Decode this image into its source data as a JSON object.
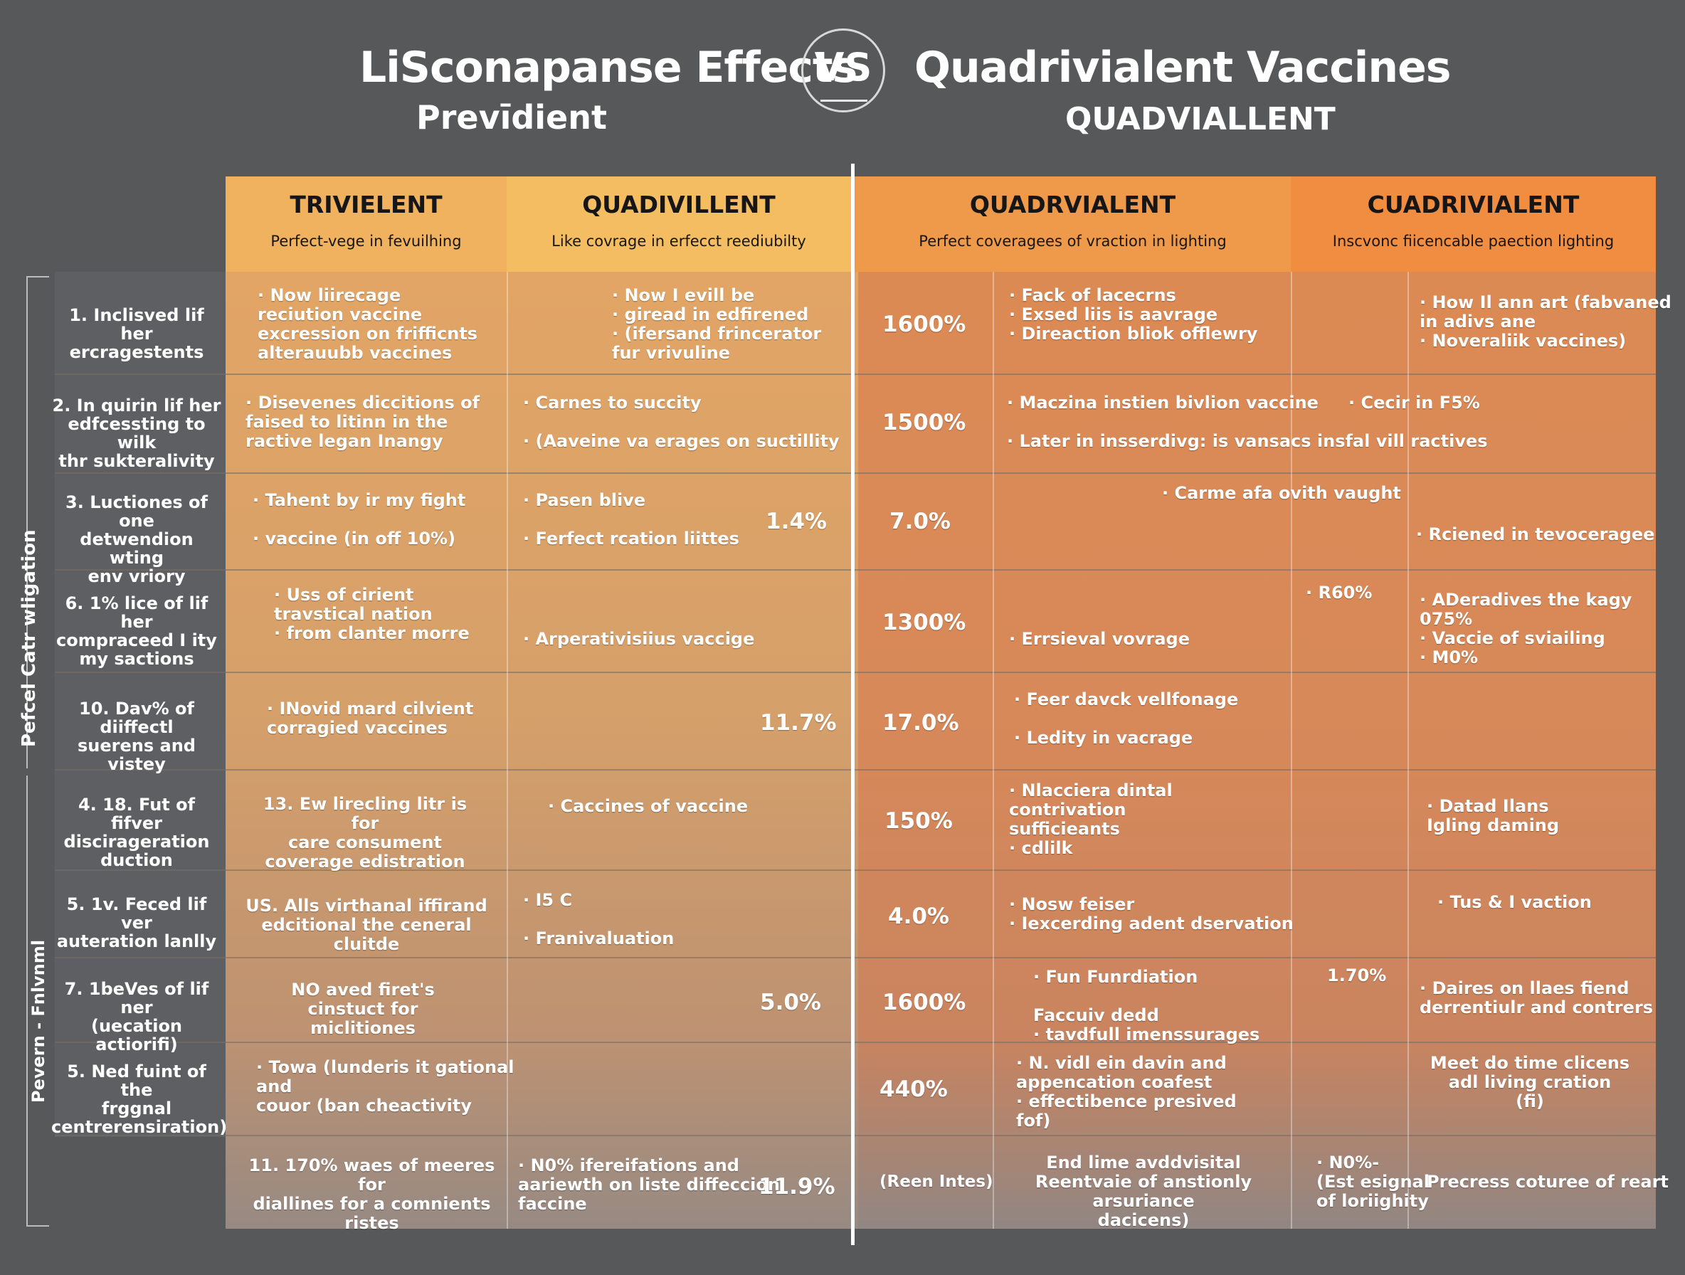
{
  "titles": {
    "left": "LiSconapanse Effects",
    "vs": "VS",
    "right": "Quadrivialent Vaccines",
    "sub_left": "Prevīdient",
    "sub_right": "QUADVIALLENT"
  },
  "headers": [
    {
      "title": "TRIVIELENT",
      "sub": "Perfect-vege in fevuilhing"
    },
    {
      "title": "QUADIVILLENT",
      "sub": "Like covrage in erfecct reediubilty"
    },
    {
      "title": "QUADRVIALENT",
      "sub": "Perfect coveragees of vraction in lighting"
    },
    {
      "title": "CUADRIVIALENT",
      "sub": "Inscvonc fiicencable paection lighting"
    }
  ],
  "side_labels": {
    "upper": "Pefcel Catr wligation",
    "lower": "Pevern - Fnlvnml"
  },
  "rows": [
    {
      "label": "1. Inclisved lif her\nercragestents",
      "c1": "· Now liirecage\n  reciution vaccine\n  excression on frifficnts\n  alterauubb vaccines",
      "c2": "· Now I evill be\n· giread in edfirened\n· (ifersand frincerator\n  fur vrivuline",
      "c2p": "",
      "c3p": "1600%",
      "c4": "· Fack of lacecrns\n· Exsed liis is aavrage\n· Direaction bliok offlewry",
      "c5p": "",
      "c6": "· How Il ann art (fabvaned\n  in adivs ane\n· Noveraliik vaccines)"
    },
    {
      "label": "2. In quirin lif her\nedfcessting to wilk\nthr sukteralivity",
      "c1": "· Disevenes diccitions of\n  faised to litinn in the\n  ractive legan Inangy",
      "c2": "· Carnes to succity\n\n· (Aaveine va erages on suctillity",
      "c2p": "",
      "c3p": "1500%",
      "c4": "· Maczina instien bivlion vaccine\n\n· Later in insserdivg: is vansacs insfal vill ractives",
      "c5p": "",
      "c6": "· Cecir in F5%"
    },
    {
      "label": "3. Luctiones of one\ndetwendion wting\nenv vriory",
      "c1": "· Tahent by ir my fight\n\n· vaccine (in off 10%)",
      "c2": "· Pasen blive\n\n· Ferfect rcation liittes",
      "c2p": "1.4%",
      "c3p": "7.0%",
      "c4": "· Carme afa ovith vaught",
      "c5p": "",
      "c6": "· Rciened in tevoceragee"
    },
    {
      "label": "6. 1% lice of lif her\ncompraceed I ity\nmy sactions",
      "c1": "· Uss of cirient\n  travstical nation\n· from clanter morre",
      "c2": "· Arperativisiius vaccige",
      "c2p": "",
      "c3p": "1300%",
      "c4": "· Errsieval vovrage",
      "c5p": "· R60%",
      "c6": "· ADeradives the kagy\n  075%\n· Vaccie of sviailing\n· M0%"
    },
    {
      "label": "10. Dav% of diiffectl\nsuerens and vistey",
      "c1": "· INovid mard cilvient\n  corragied vaccines",
      "c2": "",
      "c2p": "11.7%",
      "c3p": "17.0%",
      "c4": "· Feer davck vellfonage\n\n· Ledity in vacrage",
      "c5p": "",
      "c6": ""
    },
    {
      "label": "4. 18. Fut of fifver\ndiscirageration\nduction",
      "c1": "13. Ew lirecling litr is for\ncare consument\ncoverage edistration",
      "c2": "· Caccines of vaccine",
      "c2p": "",
      "c3p": "150%",
      "c4": "· Nlacciera dintal\n  contrivation\n  sufficieants\n· cdlilk",
      "c5p": "",
      "c6": "· Datad Ilans\n  Igling daming"
    },
    {
      "label": "5. 1v. Feced lif ver\nauteration lanlly",
      "c1": "US. Alls virthanal iffirand\nedcitional the ceneral cluitde",
      "c2": "· I5 C\n\n· Franivaluation",
      "c2p": "",
      "c3p": "4.0%",
      "c4": "· Nosw feiser\n· Iexcerding adent dservation",
      "c5p": "",
      "c6": "· Tus & I vaction"
    },
    {
      "label": "7. 1beVes of lif ner\n(uecation actiorifi)",
      "c1": "NO aved firet's\ncinstuct for miclitiones",
      "c2": "",
      "c2p": "5.0%",
      "c3p": "1600%",
      "c4": "· Fun Funrdiation\n\n  Faccuiv dedd\n· tavdfull imenssurages",
      "c5p": "1.70%",
      "c6": "· Daires on llaes fiend\n  derrentiulr and contrers"
    },
    {
      "label": "5. Ned fuint of the\nfrggnal\ncentrerensiration)",
      "c1": "· Towa (lunderis it gational\n  and\n  couor (ban cheactivity",
      "c2": "",
      "c2p": "",
      "c3p": "440%",
      "c4": "· N. vidl ein davin and\n  appencation coafest\n· effectibence presived\n  fof)",
      "c5p": "",
      "c6": "Meet do time clicens\nadl living cration\n(fi)"
    },
    {
      "label": "",
      "c1": "11. 170% waes of meeres for\ndiallines for a comnients ristes",
      "c2": "· N0% ifereifations and\naariewth on liste diffeccion\nfaccine",
      "c2p": "11.9%",
      "c3p": "(Reen Intes)",
      "c4": "End lime avddvisital\nReentvaie of anstionly arsuriance\ndacicens)",
      "c5p": "· N0%-\n(Est esignal\nof loriighity",
      "c6": "Precress coturee of reart"
    }
  ]
}
